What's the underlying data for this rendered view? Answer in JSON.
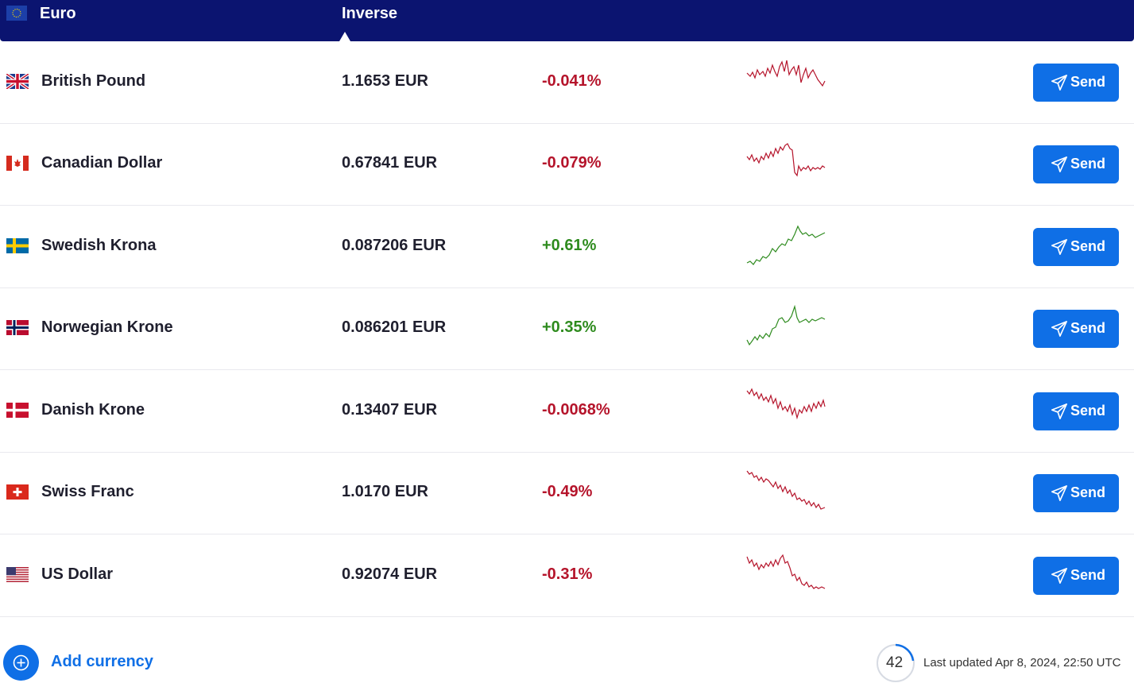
{
  "header": {
    "base_currency": "Euro",
    "inverse_label": "Inverse"
  },
  "colors": {
    "header_bg": "#0b1470",
    "accent": "#0f6fe6",
    "negative": "#b5142b",
    "positive": "#2e8b1e"
  },
  "send_label": "Send",
  "rows": [
    {
      "name": "British Pound",
      "rate": "1.1653 EUR",
      "change": "-0.041%",
      "trend": "negative",
      "flag": "uk-flag-icon"
    },
    {
      "name": "Canadian Dollar",
      "rate": "0.67841 EUR",
      "change": "-0.079%",
      "trend": "negative",
      "flag": "canada-flag-icon"
    },
    {
      "name": "Swedish Krona",
      "rate": "0.087206 EUR",
      "change": "+0.61%",
      "trend": "positive",
      "flag": "sweden-flag-icon"
    },
    {
      "name": "Norwegian Krone",
      "rate": "0.086201 EUR",
      "change": "+0.35%",
      "trend": "positive",
      "flag": "norway-flag-icon"
    },
    {
      "name": "Danish Krone",
      "rate": "0.13407 EUR",
      "change": "-0.0068%",
      "trend": "negative",
      "flag": "denmark-flag-icon"
    },
    {
      "name": "Swiss Franc",
      "rate": "1.0170 EUR",
      "change": "-0.49%",
      "trend": "negative",
      "flag": "switzerland-flag-icon"
    },
    {
      "name": "US Dollar",
      "rate": "0.92074 EUR",
      "change": "-0.31%",
      "trend": "negative",
      "flag": "us-flag-icon"
    }
  ],
  "footer": {
    "add_currency_label": "Add currency",
    "refresh_countdown": "42",
    "last_updated": "Last updated Apr 8, 2024, 22:50 UTC"
  }
}
